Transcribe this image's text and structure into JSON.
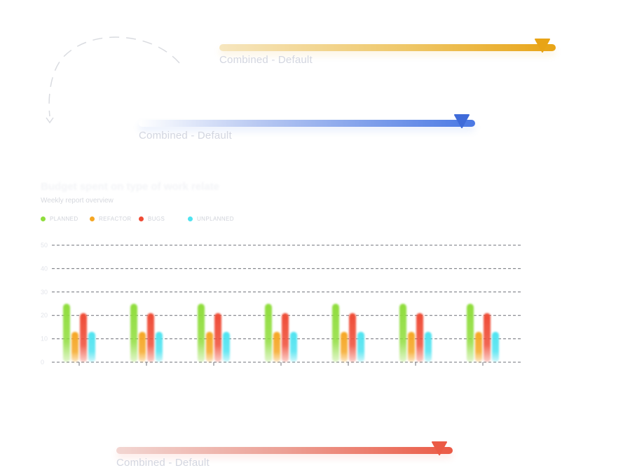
{
  "sliders": [
    {
      "id": "gold",
      "label": "Combined - Default",
      "value": 0.96,
      "color": "#e8a416"
    },
    {
      "id": "blue",
      "label": "Combined - Default",
      "value": 0.96,
      "color": "#4a78e4"
    },
    {
      "id": "red",
      "label": "Combined - Default",
      "value": 0.96,
      "color": "#eb5a45"
    }
  ],
  "chart": {
    "title": "Budget spent on type of work relate",
    "subtitle": "Weekly report overview",
    "legend": [
      {
        "label": "PLANNED",
        "color": "#8fdd3c"
      },
      {
        "label": "REFACTOR",
        "color": "#f5a623"
      },
      {
        "label": "BUGS",
        "color": "#ef4b35"
      },
      {
        "label": "UNPLANNED",
        "color": "#4fe3f0"
      }
    ]
  },
  "chart_data": {
    "type": "bar",
    "title": "Budget spent on type of work relate",
    "subtitle": "Weekly report overview",
    "xlabel": "",
    "ylabel": "",
    "ylim": [
      0,
      50
    ],
    "yticks": [
      0,
      10,
      20,
      30,
      40,
      50
    ],
    "grid": true,
    "legend_position": "top-left",
    "categories": [
      "",
      "",
      "",
      "",
      "",
      "",
      ""
    ],
    "series": [
      {
        "name": "PLANNED",
        "color": "#8fdd3c",
        "values": [
          25,
          25,
          25,
          25,
          25,
          25,
          25
        ]
      },
      {
        "name": "REFACTOR",
        "color": "#f5a623",
        "values": [
          13,
          13,
          13,
          13,
          13,
          13,
          13
        ]
      },
      {
        "name": "BUGS",
        "color": "#ef4b35",
        "values": [
          21,
          21,
          21,
          21,
          21,
          21,
          21
        ]
      },
      {
        "name": "UNPLANNED",
        "color": "#4fe3f0",
        "values": [
          13,
          13,
          13,
          13,
          13,
          13,
          13
        ]
      }
    ]
  }
}
